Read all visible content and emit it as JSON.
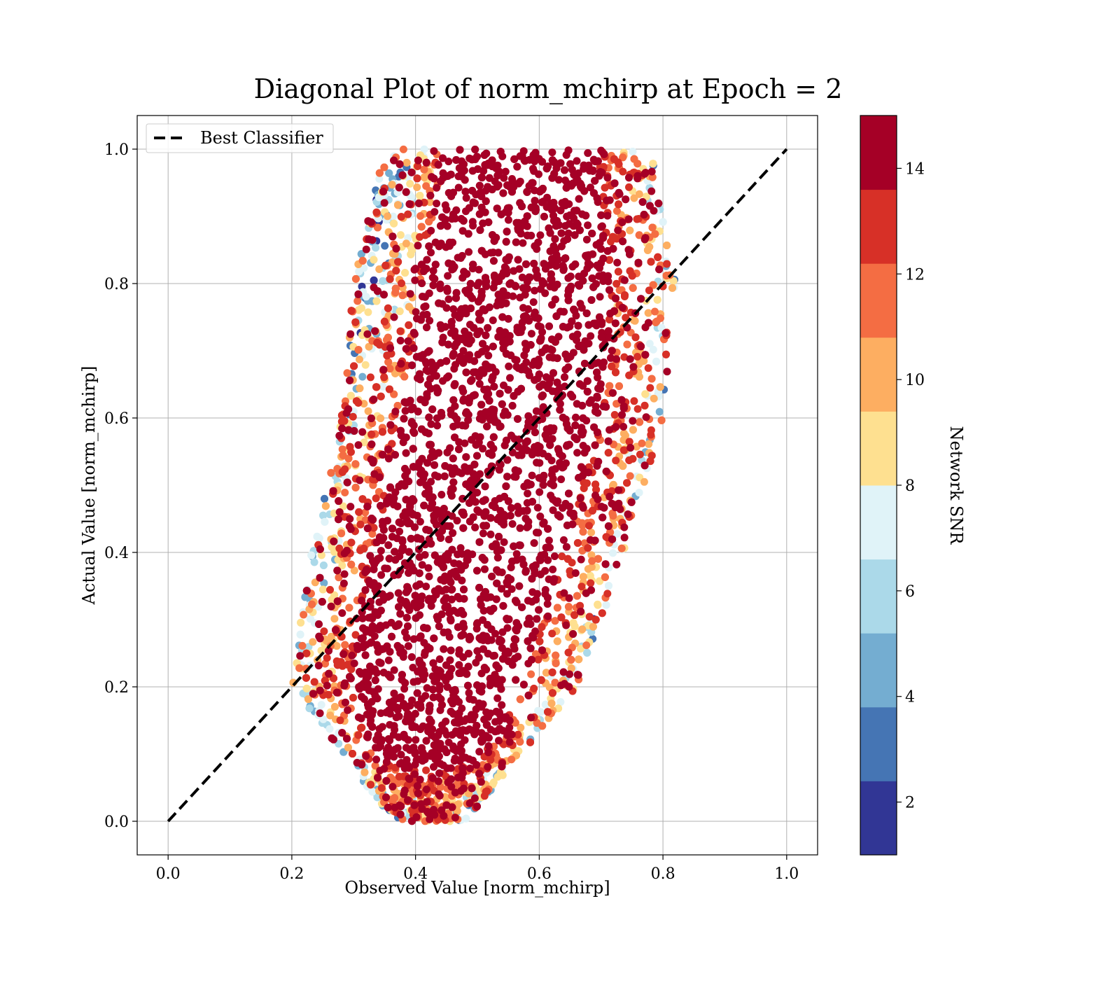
{
  "chart_data": {
    "type": "scatter",
    "title": "Diagonal Plot of norm_mchirp at Epoch = 2",
    "xlabel": "Observed Value [norm_mchirp]",
    "ylabel": "Actual Value [norm_mchirp]",
    "xlim": [
      -0.05,
      1.05
    ],
    "ylim": [
      -0.05,
      1.05
    ],
    "x_ticks": [
      "0.0",
      "0.2",
      "0.4",
      "0.6",
      "0.8",
      "1.0"
    ],
    "y_ticks": [
      "0.0",
      "0.2",
      "0.4",
      "0.6",
      "0.8",
      "1.0"
    ],
    "grid": true,
    "legend": {
      "placement": "top-left",
      "entries": [
        {
          "label": "Best Classifier",
          "style": "dashed",
          "color": "#000000"
        }
      ]
    },
    "reference_line": {
      "name": "Best Classifier",
      "x": [
        0.0,
        1.0
      ],
      "y": [
        0.0,
        1.0
      ]
    },
    "colorbar": {
      "label": "Network SNR",
      "range": [
        1,
        15
      ],
      "tick_values": [
        2,
        4,
        6,
        8,
        10,
        12,
        14
      ],
      "tick_labels": [
        "2",
        "4",
        "6",
        "8",
        "10",
        "12",
        "14"
      ],
      "colors": [
        "#313695",
        "#4575b4",
        "#74add1",
        "#abd9e9",
        "#e0f3f8",
        "#fee090",
        "#fdae61",
        "#f46d43",
        "#d73027",
        "#a50026"
      ]
    },
    "point_cloud": {
      "description_note": "dense band along the diagonal",
      "x_range_at_y": [
        {
          "y": 0.0,
          "x_min": 0.36,
          "x_max": 0.48
        },
        {
          "y": 0.2,
          "x_min": 0.2,
          "x_max": 0.66
        },
        {
          "y": 0.4,
          "x_min": 0.23,
          "x_max": 0.74
        },
        {
          "y": 0.6,
          "x_min": 0.28,
          "x_max": 0.8
        },
        {
          "y": 0.8,
          "x_min": 0.3,
          "x_max": 0.82
        },
        {
          "y": 1.0,
          "x_min": 0.35,
          "x_max": 0.78
        }
      ],
      "snr_pattern": "high SNR (~14) in the core; lower SNR toward the upper-left edge and bottom edge"
    }
  }
}
